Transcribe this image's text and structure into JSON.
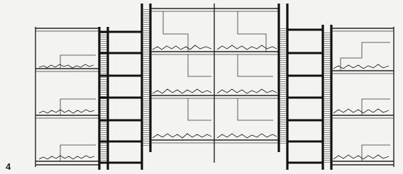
{
  "figure": {
    "label": "4"
  }
}
